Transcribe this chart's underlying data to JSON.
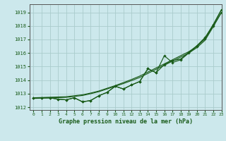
{
  "title": "Graphe pression niveau de la mer (hPa)",
  "bg_color": "#cce8ec",
  "grid_color": "#aacccc",
  "line_color": "#1a5c1a",
  "xlim": [
    -0.5,
    23
  ],
  "ylim": [
    1011.8,
    1019.6
  ],
  "yticks": [
    1012,
    1013,
    1014,
    1015,
    1016,
    1017,
    1018,
    1019
  ],
  "xticks": [
    0,
    1,
    2,
    3,
    4,
    5,
    6,
    7,
    8,
    9,
    10,
    11,
    12,
    13,
    14,
    15,
    16,
    17,
    18,
    19,
    20,
    21,
    22,
    23
  ],
  "smooth1": [
    1012.7,
    1012.72,
    1012.74,
    1012.76,
    1012.78,
    1012.85,
    1012.92,
    1013.05,
    1013.2,
    1013.4,
    1013.6,
    1013.82,
    1014.05,
    1014.3,
    1014.6,
    1014.9,
    1015.2,
    1015.5,
    1015.8,
    1016.1,
    1016.5,
    1017.1,
    1018.1,
    1019.2
  ],
  "smooth2": [
    1012.65,
    1012.67,
    1012.69,
    1012.71,
    1012.73,
    1012.8,
    1012.87,
    1013.0,
    1013.15,
    1013.35,
    1013.55,
    1013.75,
    1013.97,
    1014.2,
    1014.5,
    1014.8,
    1015.1,
    1015.4,
    1015.7,
    1016.0,
    1016.4,
    1016.95,
    1017.95,
    1019.0
  ],
  "markers1": [
    1012.7,
    1012.7,
    1012.7,
    1012.6,
    1012.55,
    1012.7,
    1012.4,
    1012.5,
    1012.85,
    1013.1,
    1013.55,
    1013.35,
    1013.65,
    1013.9,
    1014.85,
    1014.55,
    1015.15,
    1015.45,
    1015.55,
    1016.05,
    1016.55,
    1017.15,
    1018.1,
    1019.2
  ],
  "markers2": [
    1012.7,
    1012.7,
    1012.7,
    1012.6,
    1012.55,
    1012.7,
    1012.4,
    1012.5,
    1012.85,
    1013.1,
    1013.55,
    1013.35,
    1013.65,
    1013.9,
    1014.85,
    1014.55,
    1015.8,
    1015.3,
    1015.5,
    1016.0,
    1016.5,
    1017.05,
    1018.0,
    1019.0
  ]
}
